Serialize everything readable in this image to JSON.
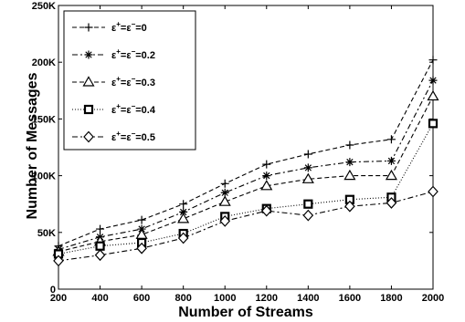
{
  "chart_data": {
    "type": "line",
    "xlabel": "Number of Streams",
    "ylabel": "Number of Messages",
    "x": [
      200,
      400,
      600,
      800,
      1000,
      1200,
      1400,
      1600,
      1800,
      2000
    ],
    "xlim": [
      200,
      2000
    ],
    "ylim": [
      0,
      250000
    ],
    "x_ticks": [
      "200",
      "400",
      "600",
      "800",
      "1000",
      "1200",
      "1400",
      "1600",
      "1800",
      "2000"
    ],
    "y_ticks": [
      "0",
      "50K",
      "100K",
      "150K",
      "200K",
      "250K"
    ],
    "grid": false,
    "legend_position": "top-left",
    "series": [
      {
        "name": "ε⁺=ε⁻=0",
        "legend_base": "ε",
        "legend_mid": "=ε",
        "legend_end": "=0",
        "marker": "plus",
        "dash": "5,3",
        "color": "#000000",
        "values": [
          38000,
          53000,
          61000,
          75000,
          93000,
          110000,
          119000,
          127000,
          132000,
          202000
        ]
      },
      {
        "name": "ε⁺=ε⁻=0.2",
        "legend_base": "ε",
        "legend_mid": "=ε",
        "legend_end": "=0.2",
        "marker": "star",
        "dash": "6,3,2,3",
        "color": "#000000",
        "values": [
          35000,
          46000,
          53000,
          68000,
          85000,
          100000,
          107000,
          112000,
          113000,
          184000
        ]
      },
      {
        "name": "ε⁺=ε⁻=0.3",
        "legend_base": "ε",
        "legend_mid": "=ε",
        "legend_end": "=0.3",
        "marker": "triangle",
        "dash": "5,3",
        "color": "#000000",
        "values": [
          33000,
          42000,
          48000,
          62000,
          77000,
          91000,
          97000,
          100000,
          100000,
          170000
        ]
      },
      {
        "name": "ε⁺=ε⁻=0.4",
        "legend_base": "ε",
        "legend_mid": "=ε",
        "legend_end": "=0.4",
        "marker": "square",
        "dash": "1,2",
        "color": "#000000",
        "values": [
          31000,
          38000,
          41000,
          49000,
          64000,
          71000,
          75000,
          79000,
          81000,
          146000
        ]
      },
      {
        "name": "ε⁺=ε⁻=0.5",
        "legend_base": "ε",
        "legend_mid": "=ε",
        "legend_end": "=0.5",
        "marker": "diamond",
        "dash": "6,3,2,3",
        "color": "#000000",
        "values": [
          25000,
          30000,
          36000,
          45000,
          60000,
          69000,
          65000,
          73000,
          76000,
          86000
        ]
      }
    ]
  }
}
